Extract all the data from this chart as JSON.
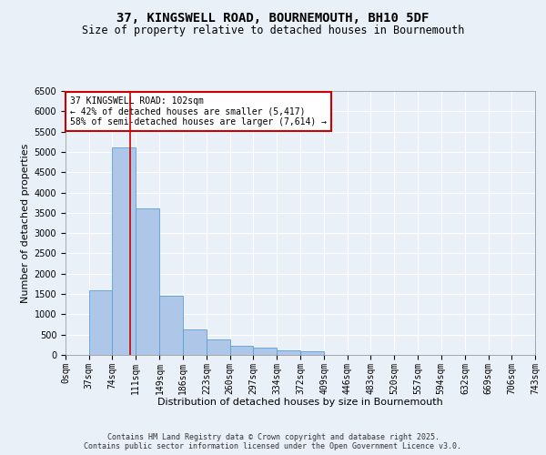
{
  "title_line1": "37, KINGSWELL ROAD, BOURNEMOUTH, BH10 5DF",
  "title_line2": "Size of property relative to detached houses in Bournemouth",
  "xlabel": "Distribution of detached houses by size in Bournemouth",
  "ylabel": "Number of detached properties",
  "annotation_title": "37 KINGSWELL ROAD: 102sqm",
  "annotation_line1": "← 42% of detached houses are smaller (5,417)",
  "annotation_line2": "58% of semi-detached houses are larger (7,614) →",
  "property_size": 102,
  "bin_edges": [
    0,
    37,
    74,
    111,
    149,
    186,
    223,
    260,
    297,
    334,
    372,
    409,
    446,
    483,
    520,
    557,
    594,
    632,
    669,
    706,
    743
  ],
  "bar_heights": [
    5,
    1600,
    5100,
    3600,
    1450,
    620,
    390,
    230,
    170,
    120,
    90,
    0,
    0,
    0,
    0,
    0,
    0,
    0,
    0,
    0
  ],
  "bar_color": "#aec6e8",
  "bar_edge_color": "#5a9fd4",
  "line_color": "#cc0000",
  "ylim": [
    0,
    6500
  ],
  "yticks": [
    0,
    500,
    1000,
    1500,
    2000,
    2500,
    3000,
    3500,
    4000,
    4500,
    5000,
    5500,
    6000,
    6500
  ],
  "bg_color": "#eaf0f8",
  "plot_bg_color": "#eaf0f8",
  "footer_line1": "Contains HM Land Registry data © Crown copyright and database right 2025.",
  "footer_line2": "Contains public sector information licensed under the Open Government Licence v3.0.",
  "annotation_box_color": "#ffffff",
  "annotation_box_edge": "#cc0000",
  "title_fontsize": 10,
  "subtitle_fontsize": 8.5,
  "axis_label_fontsize": 8,
  "tick_fontsize": 7,
  "annotation_fontsize": 7,
  "footer_fontsize": 6
}
